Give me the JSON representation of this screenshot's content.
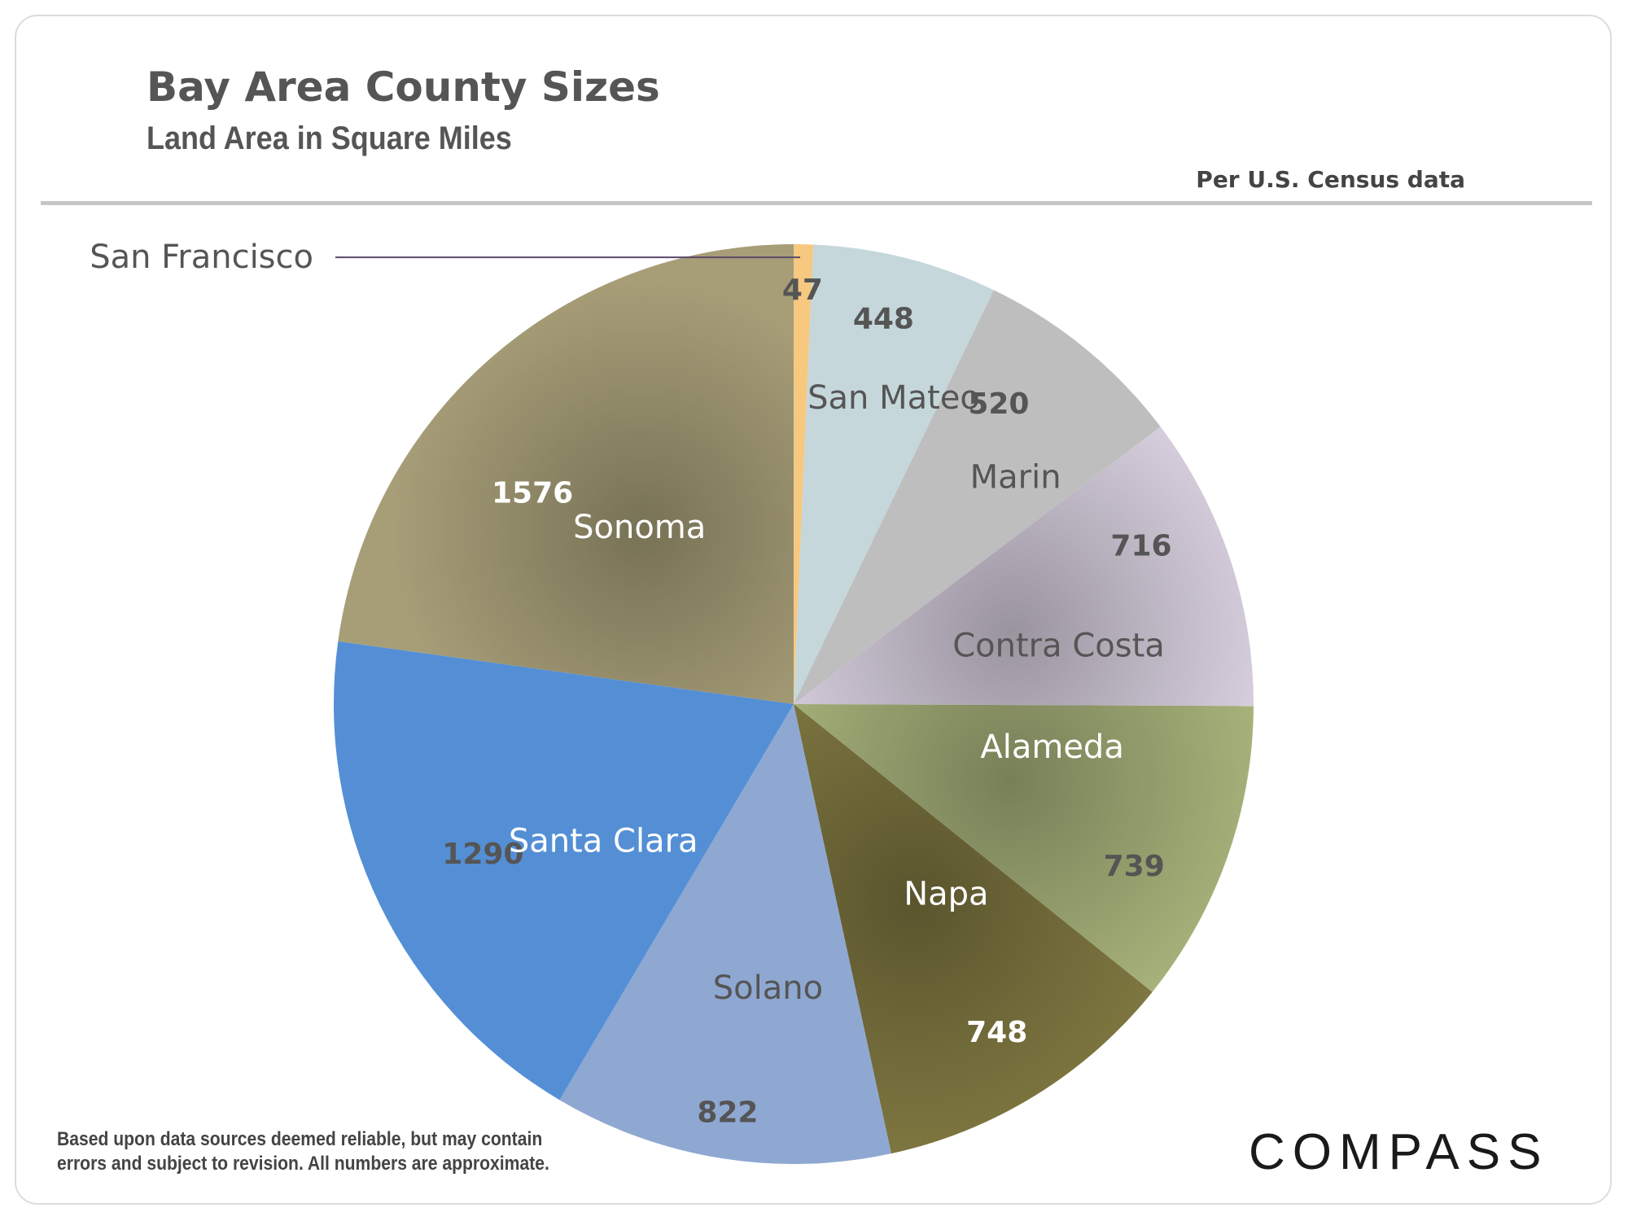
{
  "chart_data": {
    "type": "pie",
    "title": "Bay Area County Sizes",
    "subtitle": "Land Area in Square Miles",
    "source_note": "Per U.S. Census data",
    "unit": "square miles",
    "slices": [
      {
        "key": "sf",
        "label": "San Francisco",
        "value": 47,
        "color": "#F7C880",
        "label_color": "#555555",
        "value_color": "#555555"
      },
      {
        "key": "sanmateo",
        "label": "San Mateo",
        "value": 448,
        "color": "#C5D7DB",
        "label_color": "#555555",
        "value_color": "#555555"
      },
      {
        "key": "marin",
        "label": "Marin",
        "value": 520,
        "color": "#BEBEBE",
        "label_color": "#555555",
        "value_color": "#555555"
      },
      {
        "key": "contracosta",
        "label": "Contra Costa",
        "value": 716,
        "color": "#D6CEDD",
        "label_color": "#555555",
        "value_color": "#555555"
      },
      {
        "key": "alameda",
        "label": "Alameda",
        "value": 739,
        "color": "#A6B27A",
        "label_color": "#FFFFFF",
        "value_color": "#555555"
      },
      {
        "key": "napa",
        "label": "Napa",
        "value": 748,
        "color": "#7E7640",
        "label_color": "#FFFFFF",
        "value_color": "#FFFFFF"
      },
      {
        "key": "solano",
        "label": "Solano",
        "value": 822,
        "color": "#8FA8D2",
        "label_color": "#555555",
        "value_color": "#555555"
      },
      {
        "key": "santaclara",
        "label": "Santa Clara",
        "value": 1290,
        "color": "#548FD6",
        "label_color": "#FFFFFF",
        "value_color": "#555555"
      },
      {
        "key": "sonoma",
        "label": "Sonoma",
        "value": 1576,
        "color": "#A79E78",
        "label_color": "#FFFFFF",
        "value_color": "#FFFFFF"
      }
    ],
    "colors": {
      "title": "#555555",
      "divider": "#C6C6C6",
      "leader_line": "#5A4A6A"
    }
  },
  "footer": {
    "disclaimer_line1": "Based upon data sources deemed reliable, but may contain",
    "disclaimer_line2": "errors and subject to revision. All numbers are approximate."
  },
  "brand": {
    "logo_text": "COMPASS"
  }
}
